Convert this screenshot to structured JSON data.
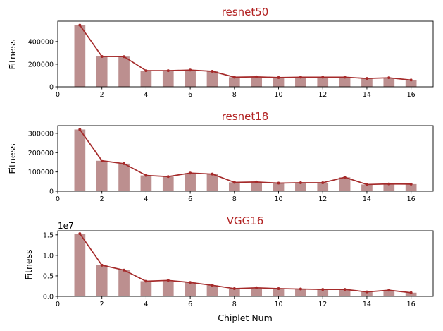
{
  "chart_data": [
    {
      "type": "bar",
      "title": "resnet50",
      "xlabel": "",
      "ylabel": "Fitness",
      "offset_text": "",
      "x": [
        1,
        2,
        3,
        4,
        5,
        6,
        7,
        8,
        9,
        10,
        11,
        12,
        13,
        14,
        15,
        16
      ],
      "values": [
        545000,
        268000,
        267000,
        143000,
        143000,
        148000,
        137000,
        85000,
        88000,
        82000,
        85000,
        85000,
        85000,
        74000,
        80000,
        60000
      ],
      "xlim": [
        0,
        17
      ],
      "ylim": [
        0,
        580000
      ],
      "xticks": [
        0,
        2,
        4,
        6,
        8,
        10,
        12,
        14,
        16
      ],
      "yticks": [
        0,
        200000,
        400000
      ],
      "ytick_labels": [
        "0",
        "200000",
        "400000"
      ],
      "line_overlay": true,
      "grid": false
    },
    {
      "type": "bar",
      "title": "resnet18",
      "xlabel": "",
      "ylabel": "Fitness",
      "offset_text": "",
      "x": [
        1,
        2,
        3,
        4,
        5,
        6,
        7,
        8,
        9,
        10,
        11,
        12,
        13,
        14,
        15,
        16
      ],
      "values": [
        320000,
        158000,
        143000,
        82000,
        76000,
        94000,
        89000,
        46000,
        48000,
        42000,
        44000,
        44000,
        72000,
        35000,
        38000,
        37000
      ],
      "xlim": [
        0,
        17
      ],
      "ylim": [
        0,
        340000
      ],
      "xticks": [
        0,
        2,
        4,
        6,
        8,
        10,
        12,
        14,
        16
      ],
      "yticks": [
        0,
        100000,
        200000,
        300000
      ],
      "ytick_labels": [
        "0",
        "100000",
        "200000",
        "300000"
      ],
      "line_overlay": true,
      "grid": false
    },
    {
      "type": "bar",
      "title": "VGG16",
      "xlabel": "Chiplet Num",
      "ylabel": "Fitness",
      "offset_text": "1e7",
      "x": [
        1,
        2,
        3,
        4,
        5,
        6,
        7,
        8,
        9,
        10,
        11,
        12,
        13,
        14,
        15,
        16
      ],
      "values": [
        1.53,
        0.76,
        0.64,
        0.37,
        0.39,
        0.34,
        0.27,
        0.19,
        0.21,
        0.19,
        0.18,
        0.17,
        0.17,
        0.11,
        0.15,
        0.09
      ],
      "xlim": [
        0,
        17
      ],
      "ylim": [
        0,
        1.6
      ],
      "xticks": [
        0,
        2,
        4,
        6,
        8,
        10,
        12,
        14,
        16
      ],
      "yticks": [
        0,
        0.5,
        1.0,
        1.5
      ],
      "ytick_labels": [
        "0.0",
        "0.5",
        "1.0",
        "1.5"
      ],
      "line_overlay": true,
      "grid": false
    }
  ],
  "colors": {
    "bar": "#bc8f8f",
    "line": "#a52a2a",
    "title": "#b22222"
  }
}
